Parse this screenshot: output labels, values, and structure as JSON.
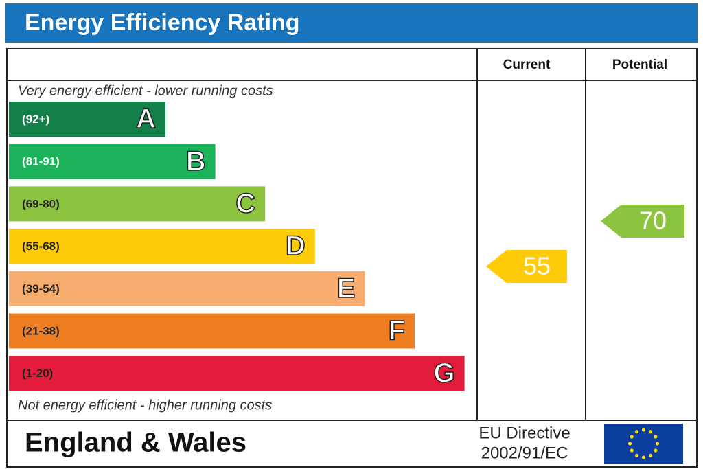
{
  "title": "Energy Efficiency Rating",
  "columns": {
    "current": "Current",
    "potential": "Potential"
  },
  "top_note": "Very energy efficient - lower running costs",
  "bottom_note": "Not energy efficient - higher running costs",
  "bands": [
    {
      "range": "(92+)",
      "letter": "A",
      "color": "#13804a"
    },
    {
      "range": "(81-91)",
      "letter": "B",
      "color": "#1cb25a"
    },
    {
      "range": "(69-80)",
      "letter": "C",
      "color": "#8cc43f"
    },
    {
      "range": "(55-68)",
      "letter": "D",
      "color": "#fdcb07"
    },
    {
      "range": "(39-54)",
      "letter": "E",
      "color": "#f7ad6f"
    },
    {
      "range": "(21-38)",
      "letter": "F",
      "color": "#ef7e23"
    },
    {
      "range": "(1-20)",
      "letter": "G",
      "color": "#e31c3b"
    }
  ],
  "current": {
    "value": 55,
    "color": "#fdcb07"
  },
  "potential": {
    "value": 70,
    "color": "#8cc43f"
  },
  "footer": {
    "region": "England & Wales",
    "directive": [
      "EU Directive",
      "2002/91/EC"
    ]
  }
}
